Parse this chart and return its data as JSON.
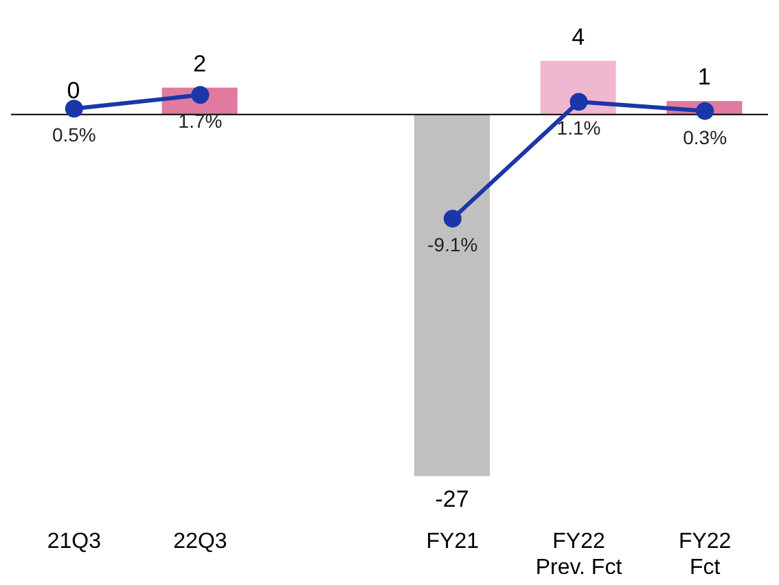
{
  "chart_data": {
    "type": "bar",
    "categories": [
      "21Q3",
      "22Q3",
      null,
      "FY21",
      "FY22 Prev. Fct",
      "FY22 Fct"
    ],
    "series": [
      {
        "values": [
          0,
          2,
          null,
          -27,
          4,
          1
        ],
        "colors": [
          "#e07aa0",
          "#e07aa0",
          "#c0c0c0",
          "#c0c0c0",
          "#f0b8d0",
          "#e07aa0"
        ],
        "value_labels": [
          "0",
          "2",
          null,
          "-27",
          "4",
          "1"
        ]
      },
      {
        "type": "line",
        "axis": "y2",
        "color": "#1a36a8",
        "marker": "circle",
        "values": [
          0.5,
          1.7,
          null,
          -9.1,
          1.1,
          0.3
        ],
        "value_labels": [
          "0.5%",
          "1.7%",
          null,
          "-9.1%",
          "1.1%",
          "0.3%"
        ]
      }
    ]
  }
}
